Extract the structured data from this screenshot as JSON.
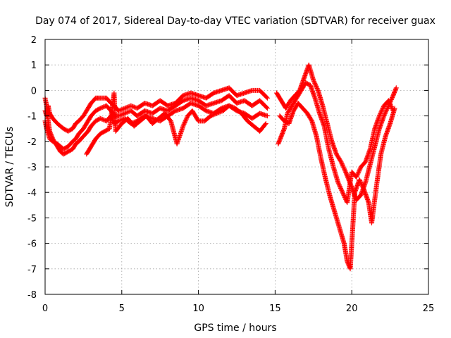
{
  "chart_data": {
    "type": "scatter",
    "title": "Day 074 of 2017, Sidereal Day-to-day VTEC variation (SDTVAR) for receiver guax",
    "xlabel": "GPS time / hours",
    "ylabel": "SDTVAR / TECUs",
    "xlim": [
      0,
      25
    ],
    "ylim": [
      -8,
      2
    ],
    "xticks": [
      "0",
      "5",
      "10",
      "15",
      "20",
      "25"
    ],
    "yticks": [
      "2",
      "1",
      "0",
      "-1",
      "-2",
      "-3",
      "-4",
      "-5",
      "-6",
      "-7",
      "-8"
    ],
    "grid": true,
    "marker": "+",
    "series_color": "#ff0000",
    "series": [
      {
        "x": [
          0.0,
          0.1,
          0.2,
          0.3,
          0.5,
          0.8,
          1.0,
          1.2,
          1.5,
          1.8,
          2.0,
          2.2,
          2.5,
          2.8,
          3.0,
          3.3,
          3.6,
          4.0,
          4.3,
          4.5,
          4.8,
          5.2,
          5.6,
          6.0,
          6.5,
          7.0,
          7.5,
          8.0,
          8.5,
          9.0,
          9.5,
          10.0,
          10.5,
          11.0,
          11.5,
          12.0,
          12.5,
          13.0,
          13.5,
          14.0,
          14.5
        ],
        "y": [
          -0.8,
          -1.0,
          -0.6,
          -0.9,
          -1.1,
          -1.3,
          -1.4,
          -1.5,
          -1.6,
          -1.5,
          -1.3,
          -1.2,
          -1.0,
          -0.7,
          -0.5,
          -0.3,
          -0.3,
          -0.3,
          -0.5,
          -0.6,
          -0.8,
          -0.7,
          -0.6,
          -0.7,
          -0.5,
          -0.6,
          -0.4,
          -0.6,
          -0.5,
          -0.2,
          -0.1,
          -0.2,
          -0.3,
          -0.1,
          0.0,
          0.1,
          -0.2,
          -0.1,
          0.0,
          0.0,
          -0.3
        ]
      },
      {
        "x": [
          0.0,
          0.1,
          0.2,
          0.3,
          0.5,
          0.8,
          1.0,
          1.2,
          1.5,
          1.8,
          2.0,
          2.2,
          2.5,
          2.8,
          3.0,
          3.3,
          3.6,
          4.0,
          4.3,
          4.5,
          4.8,
          5.2,
          5.6,
          6.0,
          6.5,
          7.0,
          7.5,
          8.0,
          8.5,
          9.0,
          9.5,
          10.0,
          10.5,
          11.0,
          11.5,
          12.0,
          12.5,
          13.0,
          13.5,
          14.0,
          14.5
        ],
        "y": [
          -1.2,
          -1.5,
          -1.7,
          -1.9,
          -2.0,
          -2.1,
          -2.2,
          -2.3,
          -2.2,
          -2.0,
          -1.9,
          -1.7,
          -1.5,
          -1.2,
          -1.0,
          -0.8,
          -0.7,
          -0.6,
          -0.8,
          -1.0,
          -1.0,
          -0.9,
          -0.8,
          -1.0,
          -0.8,
          -0.9,
          -0.7,
          -0.8,
          -0.6,
          -0.4,
          -0.3,
          -0.4,
          -0.6,
          -0.5,
          -0.4,
          -0.2,
          -0.5,
          -0.4,
          -0.6,
          -0.4,
          -0.7
        ]
      },
      {
        "x": [
          0.0,
          0.1,
          0.2,
          0.3,
          0.5,
          0.8,
          1.0,
          1.2,
          1.5,
          1.8,
          2.0,
          2.2,
          2.5,
          2.8,
          3.0,
          3.3,
          3.6,
          4.0,
          4.3,
          4.5,
          4.8,
          5.2,
          5.6,
          6.0,
          6.5,
          7.0,
          7.5,
          8.0,
          8.5,
          9.0,
          9.5,
          10.0,
          10.5,
          11.0,
          11.5,
          12.0,
          12.5,
          13.0,
          13.5,
          14.0,
          14.5
        ],
        "y": [
          -0.3,
          -0.6,
          -1.2,
          -1.6,
          -1.9,
          -2.2,
          -2.4,
          -2.5,
          -2.4,
          -2.3,
          -2.1,
          -2.0,
          -1.8,
          -1.6,
          -1.4,
          -1.2,
          -1.1,
          -1.2,
          -1.0,
          -1.3,
          -1.2,
          -1.1,
          -1.3,
          -1.2,
          -1.0,
          -1.1,
          -1.2,
          -1.0,
          -0.8,
          -0.7,
          -0.5,
          -0.6,
          -0.8,
          -0.9,
          -0.7,
          -0.6,
          -0.8,
          -0.9,
          -1.1,
          -0.9,
          -1.0
        ]
      },
      {
        "x": [
          2.7,
          2.9,
          3.1,
          3.3,
          3.6,
          3.9,
          4.2,
          4.5,
          4.6,
          5.0,
          5.4,
          5.8,
          6.2,
          6.6,
          7.0,
          7.4,
          7.8,
          8.2,
          8.6,
          9.0,
          9.3,
          9.6,
          10.0,
          10.4,
          10.8,
          11.2,
          11.6,
          12.0,
          12.4,
          12.8,
          13.2,
          13.6,
          14.0,
          14.4
        ],
        "y": [
          -2.5,
          -2.3,
          -2.1,
          -1.9,
          -1.7,
          -1.6,
          -1.5,
          -0.1,
          -1.6,
          -1.3,
          -1.1,
          -1.4,
          -1.2,
          -1.0,
          -1.3,
          -1.1,
          -0.9,
          -1.2,
          -2.1,
          -1.4,
          -1.0,
          -0.8,
          -1.2,
          -1.2,
          -1.0,
          -0.9,
          -0.8,
          -0.6,
          -0.7,
          -0.9,
          -1.2,
          -1.4,
          -1.6,
          -1.3
        ]
      },
      {
        "x": [
          15.1,
          15.3,
          15.5,
          15.7,
          16.0,
          16.3,
          16.6,
          16.9,
          17.2,
          17.5,
          17.8,
          18.1,
          18.4,
          18.7,
          19.0,
          19.3,
          19.6,
          19.8,
          20.0,
          20.3,
          20.6,
          20.9,
          21.2,
          21.5,
          21.8,
          22.1,
          22.4,
          22.7,
          22.9
        ],
        "y": [
          -0.1,
          -0.3,
          -0.5,
          -0.7,
          -0.4,
          -0.2,
          0.0,
          0.5,
          1.0,
          0.4,
          0.0,
          -0.6,
          -1.3,
          -2.0,
          -2.5,
          -2.8,
          -3.2,
          -3.5,
          -3.8,
          -4.3,
          -4.1,
          -3.6,
          -2.9,
          -2.2,
          -1.5,
          -1.0,
          -0.6,
          -0.2,
          0.1
        ]
      },
      {
        "x": [
          15.2,
          15.4,
          15.6,
          15.8,
          16.1,
          16.4,
          16.7,
          17.0,
          17.3,
          17.6,
          17.9,
          18.2,
          18.5,
          18.8,
          19.1,
          19.4,
          19.7,
          20.0,
          20.3,
          20.6,
          20.9,
          21.2,
          21.5,
          21.8,
          22.1,
          22.4,
          22.7
        ],
        "y": [
          -2.1,
          -1.8,
          -1.5,
          -0.9,
          -0.6,
          -0.3,
          0.0,
          0.3,
          0.2,
          -0.3,
          -0.9,
          -1.4,
          -2.3,
          -3.0,
          -3.6,
          -4.0,
          -4.4,
          -3.2,
          -3.4,
          -3.0,
          -2.8,
          -2.3,
          -1.5,
          -1.0,
          -0.6,
          -0.4,
          -0.8
        ]
      },
      {
        "x": [
          15.3,
          15.6,
          15.9,
          16.2,
          16.5,
          16.8,
          17.1,
          17.4,
          17.7,
          18.0,
          18.3,
          18.6,
          18.9,
          19.2,
          19.5,
          19.7,
          19.9,
          20.2,
          20.5,
          20.8,
          21.1,
          21.3,
          21.6,
          21.9,
          22.2,
          22.5,
          22.8
        ],
        "y": [
          -1.0,
          -1.2,
          -1.3,
          -0.8,
          -0.5,
          -0.7,
          -0.9,
          -1.2,
          -1.8,
          -2.7,
          -3.5,
          -4.2,
          -4.8,
          -5.4,
          -6.0,
          -6.7,
          -7.0,
          -4.0,
          -3.5,
          -3.9,
          -4.4,
          -5.2,
          -3.8,
          -2.5,
          -1.8,
          -1.3,
          -0.7
        ]
      }
    ]
  }
}
